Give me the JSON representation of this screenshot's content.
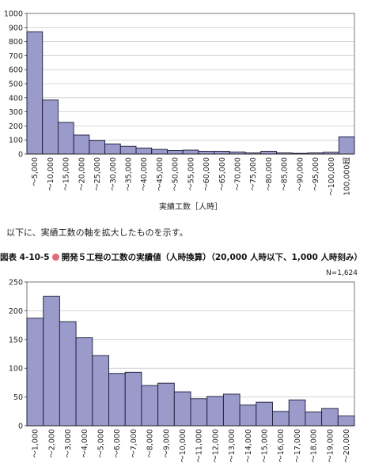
{
  "note": "以下に、実績工数の軸を拡大したものを示す。",
  "figure": {
    "number": "図表 4-10-5",
    "title": "開発５工程の工数の実績値（人時換算）（20,000 人時以下、1,000 人時刻み）",
    "n_label": "N=1,624"
  },
  "colors": {
    "bar_fill": "#9a9acb",
    "bar_stroke": "#1a1a3a",
    "marker": "#e06a78"
  },
  "chart_data": [
    {
      "type": "bar",
      "title": "",
      "xlabel": "実績工数［人時］",
      "ylabel": "",
      "ylim": [
        0,
        1000
      ],
      "yticks": [
        0,
        100,
        200,
        300,
        400,
        500,
        600,
        700,
        800,
        900,
        1000
      ],
      "grid": true,
      "categories": [
        "～5,000",
        "～10,000",
        "～15,000",
        "～20,000",
        "～25,000",
        "～30,000",
        "～35,000",
        "～40,000",
        "～45,000",
        "～50,000",
        "～55,000",
        "～60,000",
        "～65,000",
        "～70,000",
        "～75,000",
        "～80,000",
        "～85,000",
        "～90,000",
        "～95,000",
        "～100,000",
        "100,000超"
      ],
      "values": [
        870,
        385,
        225,
        135,
        97,
        72,
        55,
        43,
        33,
        25,
        28,
        20,
        20,
        15,
        8,
        20,
        8,
        5,
        8,
        13,
        123
      ]
    },
    {
      "type": "bar",
      "title": "",
      "xlabel": "",
      "ylabel": "",
      "ylim": [
        0,
        250
      ],
      "yticks": [
        0,
        50,
        100,
        150,
        200,
        250
      ],
      "grid": true,
      "categories": [
        "～1,000",
        "～2,000",
        "～3,000",
        "～4,000",
        "～5,000",
        "～6,000",
        "～7,000",
        "～8,000",
        "～9,000",
        "～10,000",
        "～11,000",
        "～12,000",
        "～13,000",
        "～14,000",
        "～15,000",
        "～16,000",
        "～17,000",
        "～18,000",
        "～19,000",
        "～20,000"
      ],
      "values": [
        187,
        225,
        181,
        153,
        122,
        91,
        93,
        70,
        74,
        59,
        47,
        51,
        55,
        36,
        41,
        25,
        45,
        24,
        30,
        17
      ]
    }
  ]
}
